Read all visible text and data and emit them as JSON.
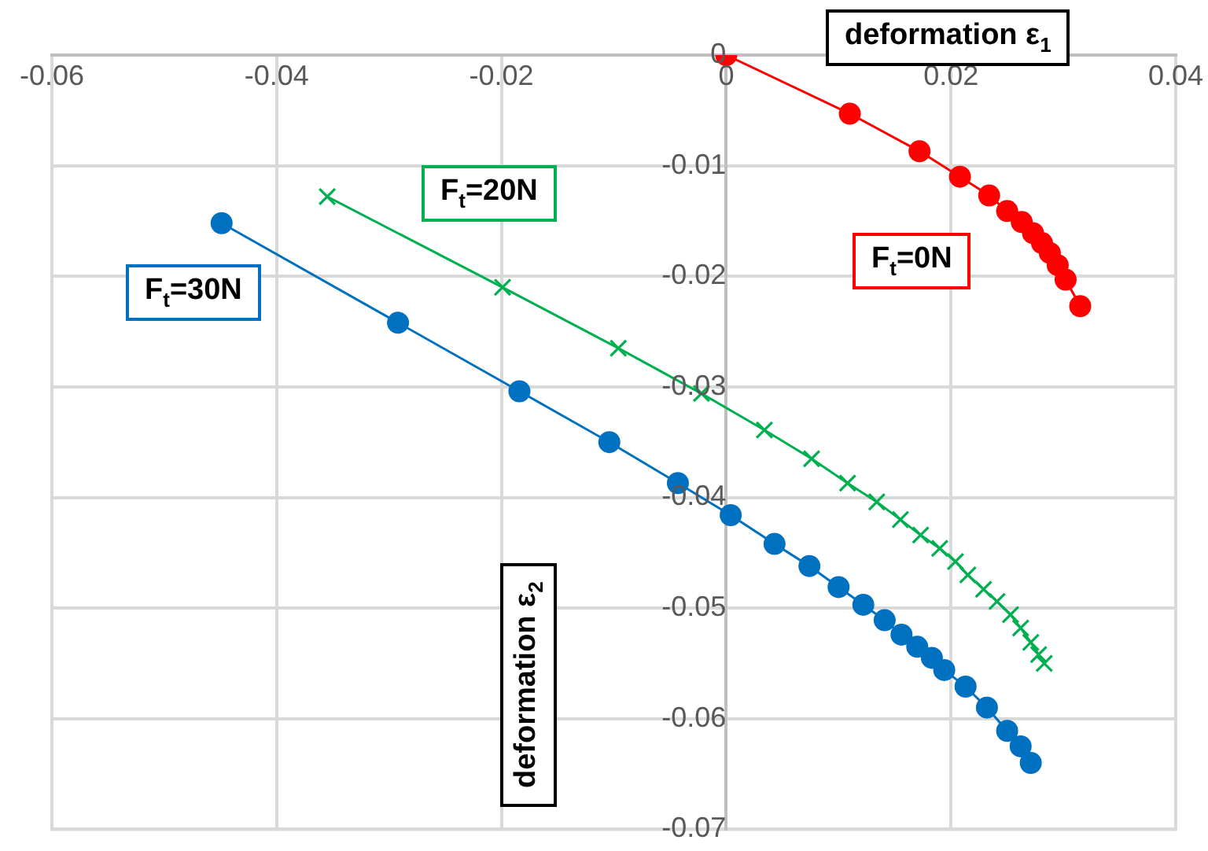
{
  "chart_data": {
    "type": "line",
    "xlabel": "deformation ε$_{1}$",
    "ylabel": "deformation ε$_{2}$",
    "xlim": [
      -0.06,
      0.04
    ],
    "xticks": [
      -0.06,
      -0.04,
      -0.02,
      0,
      0.02,
      0.04
    ],
    "ylim": [
      -0.07,
      0
    ],
    "yticks": [
      -0.07,
      -0.06,
      -0.05,
      -0.04,
      -0.03,
      -0.02,
      -0.01,
      0
    ],
    "grid": true,
    "legend": false,
    "series": [
      {
        "name": "F$_{t}$=0N",
        "color": "#ff0000",
        "marker": "circle",
        "x": [
          0,
          0.011,
          0.0172,
          0.0208,
          0.0234,
          0.025,
          0.0263,
          0.0273,
          0.0281,
          0.0288,
          0.0295,
          0.0302,
          0.0315
        ],
        "values": [
          0,
          -0.0053,
          -0.0087,
          -0.011,
          -0.0127,
          -0.0141,
          -0.0151,
          -0.0161,
          -0.017,
          -0.0179,
          -0.019,
          -0.0203,
          -0.0227
        ]
      },
      {
        "name": "F$_{t}$=20N",
        "color": "#00b050",
        "marker": "cross",
        "x": [
          -0.0355,
          -0.0199,
          -0.0096,
          -0.0022,
          0.0034,
          0.0076,
          0.0108,
          0.0134,
          0.0155,
          0.0173,
          0.019,
          0.0204,
          0.0215,
          0.0229,
          0.0241,
          0.0253,
          0.0262,
          0.0271,
          0.0278,
          0.0283
        ],
        "values": [
          -0.0128,
          -0.021,
          -0.0265,
          -0.0306,
          -0.0339,
          -0.0365,
          -0.0387,
          -0.0404,
          -0.042,
          -0.0434,
          -0.0446,
          -0.0458,
          -0.047,
          -0.0483,
          -0.0494,
          -0.0506,
          -0.0518,
          -0.0531,
          -0.0542,
          -0.055
        ]
      },
      {
        "name": "F$_{t}$=30N",
        "color": "#0070c0",
        "marker": "circle",
        "x": [
          -0.0449,
          -0.0292,
          -0.0184,
          -0.0104,
          -0.0043,
          0.0004,
          0.0043,
          0.0074,
          0.01,
          0.0122,
          0.0141,
          0.0156,
          0.017,
          0.0183,
          0.0194,
          0.0213,
          0.0232,
          0.025,
          0.0262,
          0.0271
        ],
        "values": [
          -0.0152,
          -0.0242,
          -0.0304,
          -0.035,
          -0.0387,
          -0.0416,
          -0.0442,
          -0.0462,
          -0.0481,
          -0.0497,
          -0.0511,
          -0.0524,
          -0.0535,
          -0.0545,
          -0.0556,
          -0.0571,
          -0.059,
          -0.0611,
          -0.0625,
          -0.064
        ]
      }
    ]
  }
}
